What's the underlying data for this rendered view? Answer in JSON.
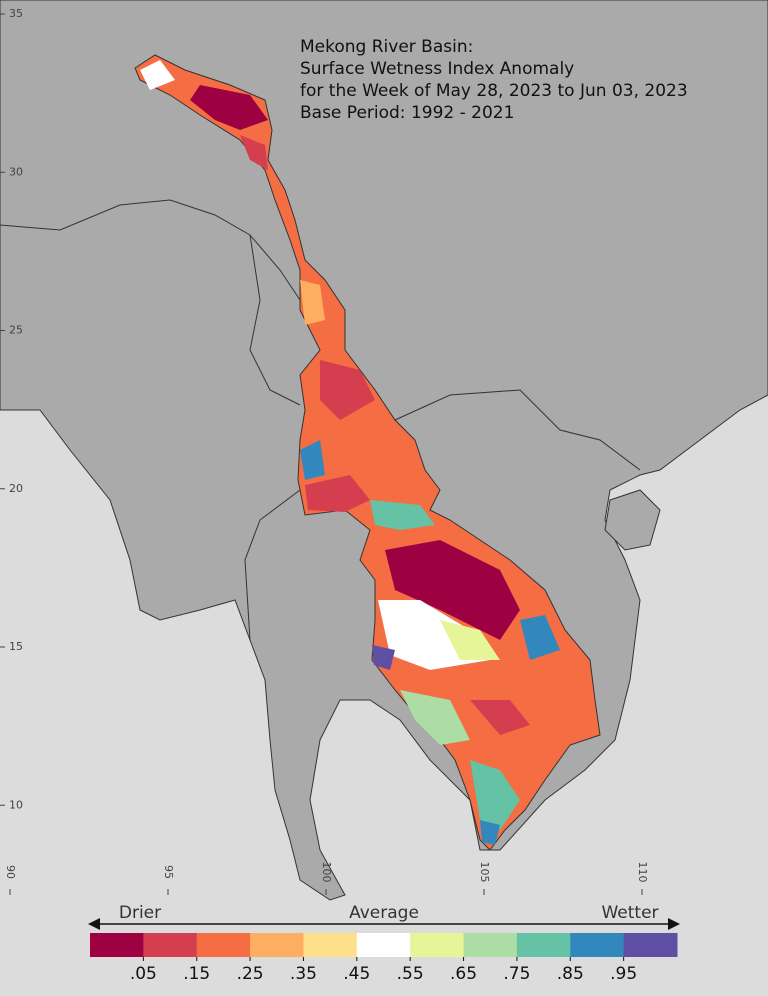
{
  "title_lines": [
    "Mekong River Basin:",
    "Surface Wetness Index Anomaly",
    "for the Week of May 28, 2023 to Jun 03, 2023",
    "Base Period: 1992 - 2021"
  ],
  "lat_ticks": [
    35,
    30,
    25,
    20,
    15,
    10
  ],
  "lon_ticks": [
    90,
    95,
    100,
    105,
    110
  ],
  "legend": {
    "left": "Drier",
    "middle": "Average",
    "right": "Wetter"
  },
  "colorbar": {
    "colors": [
      "#9e0142",
      "#d53e4f",
      "#f46d43",
      "#fdae61",
      "#fee08b",
      "#ffffff",
      "#e6f598",
      "#abdda4",
      "#66c2a5",
      "#3288bd",
      "#5e4fa2"
    ],
    "ticks": [
      {
        "value": 0.05,
        "label": ".05"
      },
      {
        "value": 0.15,
        "label": ".15"
      },
      {
        "value": 0.25,
        "label": ".25"
      },
      {
        "value": 0.35,
        "label": ".35"
      },
      {
        "value": 0.45,
        "label": ".45"
      },
      {
        "value": 0.55,
        "label": ".55"
      },
      {
        "value": 0.65,
        "label": ".65"
      },
      {
        "value": 0.75,
        "label": ".75"
      },
      {
        "value": 0.85,
        "label": ".85"
      },
      {
        "value": 0.95,
        "label": ".95"
      }
    ]
  }
}
